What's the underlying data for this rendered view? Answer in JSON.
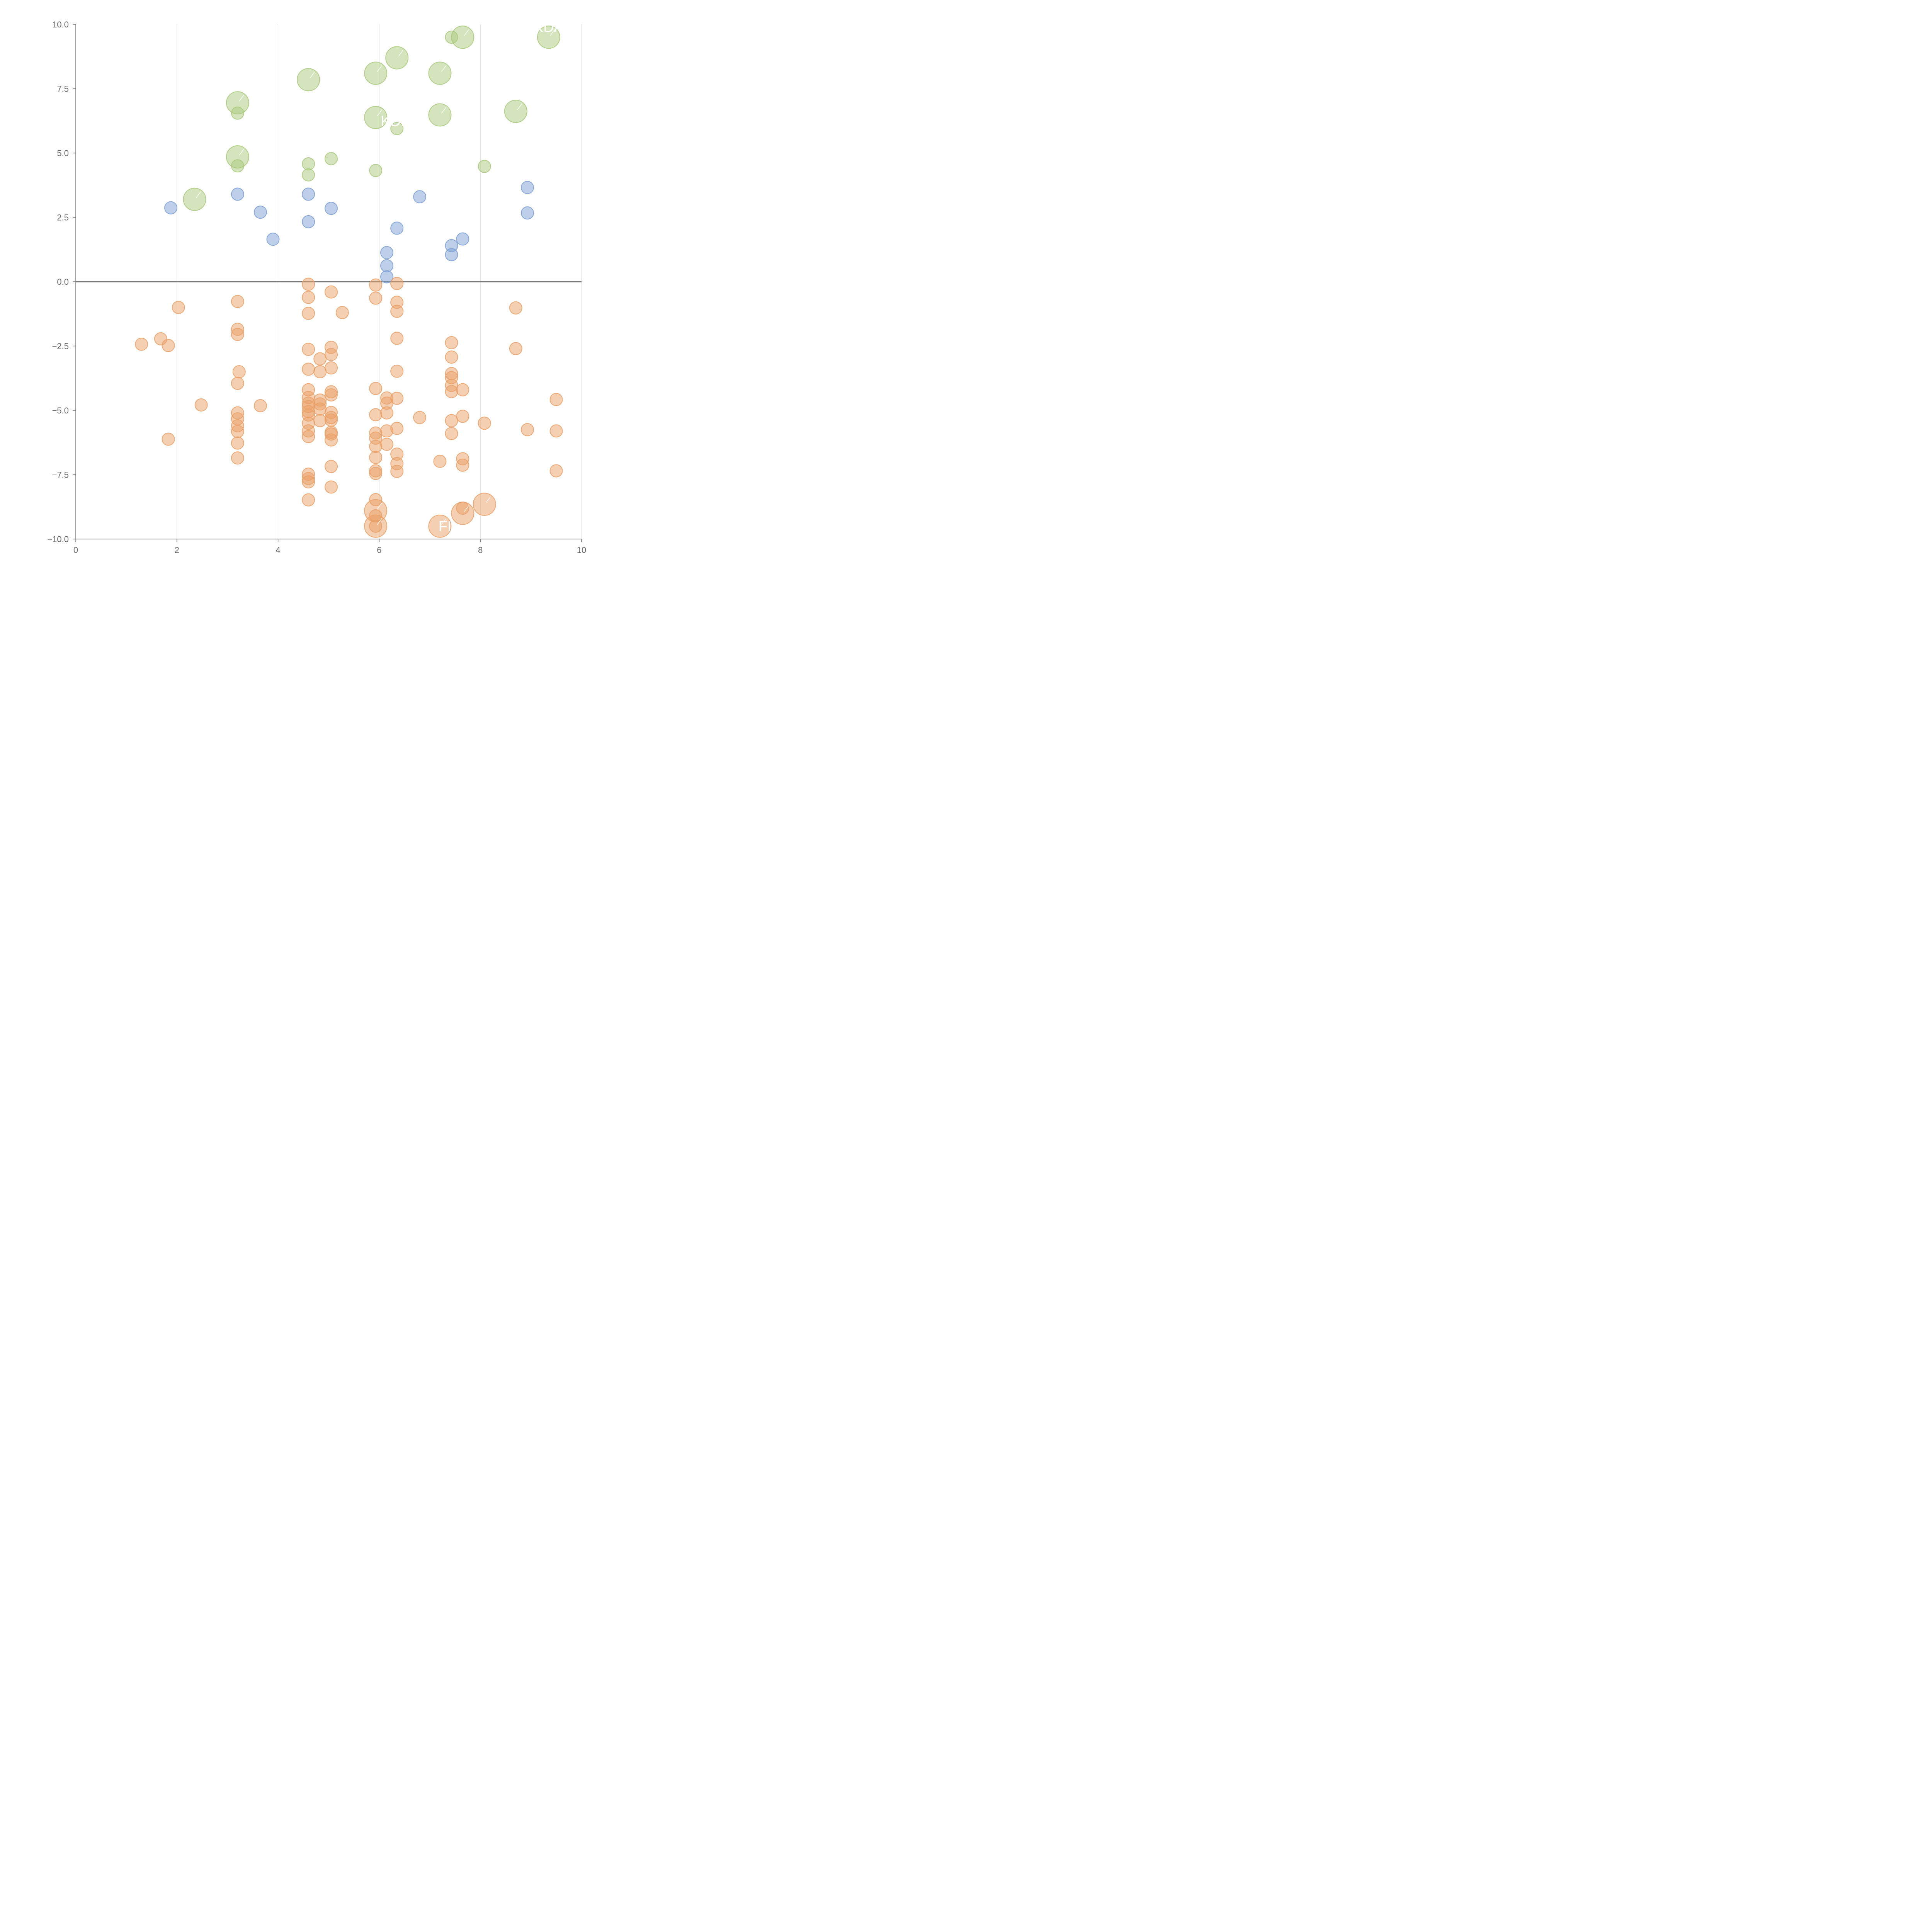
{
  "chart_data": {
    "type": "scatter",
    "title": "",
    "xlabel": "",
    "ylabel": "",
    "xlim": [
      0,
      10
    ],
    "ylim": [
      -10,
      10
    ],
    "x_ticks": [
      0,
      2,
      4,
      6,
      8,
      10
    ],
    "x_tick_labels": [
      "0",
      "2",
      "4",
      "6",
      "8",
      "10"
    ],
    "y_ticks": [
      10,
      7.5,
      5,
      2.5,
      0,
      -2.5,
      -5,
      -7.5,
      -10
    ],
    "y_tick_labels": [
      "10.0",
      "7.5",
      "5.0",
      "2.5",
      "0.0",
      "−2.5",
      "−5.0",
      "−7.5",
      "−10.0"
    ],
    "grid": "vertical",
    "zero_line": true,
    "colors": {
      "green": "#a9c97c",
      "blue": "#7c9fd4",
      "orange": "#e9a066",
      "axis": "#777777",
      "grid": "#dddddd",
      "tick_text": "#666666"
    },
    "series": [
      {
        "color_key": "green",
        "points": [
          [
            2.35,
            3.2,
            "L"
          ],
          [
            3.2,
            6.95,
            "L"
          ],
          [
            3.2,
            6.55,
            "S"
          ],
          [
            3.2,
            4.85,
            "L"
          ],
          [
            3.2,
            4.5,
            "S"
          ],
          [
            4.6,
            7.85,
            "L"
          ],
          [
            4.6,
            4.58,
            "S"
          ],
          [
            4.6,
            4.15,
            "S"
          ],
          [
            5.05,
            4.78,
            "S"
          ],
          [
            5.93,
            8.1,
            "L"
          ],
          [
            5.93,
            6.38,
            "L"
          ],
          [
            5.93,
            4.32,
            "S"
          ],
          [
            6.35,
            8.7,
            "L"
          ],
          [
            6.35,
            5.95,
            "S"
          ],
          [
            7.2,
            8.1,
            "L"
          ],
          [
            7.2,
            6.48,
            "L"
          ],
          [
            7.43,
            9.5,
            "S"
          ],
          [
            7.65,
            9.5,
            "L"
          ],
          [
            8.08,
            4.48,
            "S"
          ],
          [
            8.7,
            6.62,
            "L"
          ],
          [
            9.35,
            9.5,
            "L"
          ]
        ]
      },
      {
        "color_key": "blue",
        "points": [
          [
            1.88,
            2.87,
            "S"
          ],
          [
            3.2,
            3.4,
            "S"
          ],
          [
            3.65,
            2.7,
            "S"
          ],
          [
            3.9,
            1.65,
            "S"
          ],
          [
            4.6,
            3.4,
            "S"
          ],
          [
            4.6,
            2.33,
            "S"
          ],
          [
            5.05,
            2.85,
            "S"
          ],
          [
            6.15,
            1.13,
            "S"
          ],
          [
            6.15,
            0.62,
            "S"
          ],
          [
            6.15,
            0.19,
            "S"
          ],
          [
            6.35,
            2.08,
            "S"
          ],
          [
            6.8,
            3.3,
            "S"
          ],
          [
            7.43,
            1.4,
            "S"
          ],
          [
            7.43,
            1.05,
            "S"
          ],
          [
            7.65,
            1.66,
            "S"
          ],
          [
            8.93,
            3.66,
            "S"
          ],
          [
            8.93,
            2.67,
            "S"
          ]
        ]
      },
      {
        "color_key": "orange",
        "points": [
          [
            1.3,
            -2.43,
            "S"
          ],
          [
            1.68,
            -2.22,
            "S"
          ],
          [
            1.83,
            -2.48,
            "S"
          ],
          [
            1.83,
            -6.12,
            "S"
          ],
          [
            2.03,
            -1.0,
            "S"
          ],
          [
            2.48,
            -4.79,
            "S"
          ],
          [
            3.2,
            -0.77,
            "S"
          ],
          [
            3.2,
            -1.85,
            "S"
          ],
          [
            3.2,
            -2.05,
            "S"
          ],
          [
            3.23,
            -3.5,
            "S"
          ],
          [
            3.2,
            -3.95,
            "S"
          ],
          [
            3.2,
            -5.1,
            "S"
          ],
          [
            3.2,
            -5.33,
            "S"
          ],
          [
            3.2,
            -5.6,
            "S"
          ],
          [
            3.2,
            -5.82,
            "S"
          ],
          [
            3.2,
            -6.27,
            "S"
          ],
          [
            3.2,
            -6.85,
            "S"
          ],
          [
            3.65,
            -4.82,
            "S"
          ],
          [
            4.6,
            -0.1,
            "S"
          ],
          [
            4.6,
            -0.61,
            "S"
          ],
          [
            4.6,
            -1.23,
            "S"
          ],
          [
            4.6,
            -2.63,
            "S"
          ],
          [
            4.6,
            -3.4,
            "S"
          ],
          [
            4.6,
            -4.2,
            "S"
          ],
          [
            4.6,
            -4.5,
            "S"
          ],
          [
            4.6,
            -4.72,
            "S"
          ],
          [
            4.6,
            -4.85,
            "S"
          ],
          [
            4.6,
            -5.05,
            "S"
          ],
          [
            4.6,
            -5.18,
            "S"
          ],
          [
            4.6,
            -5.5,
            "S"
          ],
          [
            4.6,
            -5.8,
            "S"
          ],
          [
            4.6,
            -6.02,
            "S"
          ],
          [
            4.6,
            -7.48,
            "S"
          ],
          [
            4.6,
            -7.65,
            "S"
          ],
          [
            4.6,
            -7.78,
            "S"
          ],
          [
            4.6,
            -8.48,
            "S"
          ],
          [
            4.83,
            -3.0,
            "S"
          ],
          [
            4.83,
            -3.5,
            "S"
          ],
          [
            4.83,
            -4.6,
            "S"
          ],
          [
            4.83,
            -4.75,
            "S"
          ],
          [
            4.83,
            -4.95,
            "S"
          ],
          [
            4.83,
            -5.4,
            "S"
          ],
          [
            5.05,
            -0.4,
            "S"
          ],
          [
            5.05,
            -2.55,
            "S"
          ],
          [
            5.05,
            -2.83,
            "S"
          ],
          [
            5.05,
            -3.35,
            "S"
          ],
          [
            5.05,
            -4.28,
            "S"
          ],
          [
            5.05,
            -4.4,
            "S"
          ],
          [
            5.05,
            -5.08,
            "S"
          ],
          [
            5.05,
            -5.28,
            "S"
          ],
          [
            5.05,
            -5.38,
            "S"
          ],
          [
            5.05,
            -5.85,
            "S"
          ],
          [
            5.05,
            -5.92,
            "S"
          ],
          [
            5.05,
            -6.15,
            "S"
          ],
          [
            5.05,
            -7.18,
            "S"
          ],
          [
            5.05,
            -7.98,
            "S"
          ],
          [
            5.27,
            -1.2,
            "S"
          ],
          [
            5.93,
            -0.13,
            "S"
          ],
          [
            5.93,
            -0.64,
            "S"
          ],
          [
            5.93,
            -4.15,
            "S"
          ],
          [
            5.93,
            -5.17,
            "S"
          ],
          [
            5.93,
            -5.88,
            "S"
          ],
          [
            5.93,
            -6.08,
            "S"
          ],
          [
            5.93,
            -6.4,
            "S"
          ],
          [
            5.93,
            -6.83,
            "S"
          ],
          [
            5.93,
            -7.35,
            "S"
          ],
          [
            5.93,
            -7.45,
            "S"
          ],
          [
            5.93,
            -8.47,
            "S"
          ],
          [
            5.93,
            -8.9,
            "L"
          ],
          [
            5.93,
            -9.1,
            "S"
          ],
          [
            5.93,
            -9.5,
            "L"
          ],
          [
            5.93,
            -9.5,
            "S"
          ],
          [
            6.15,
            -4.52,
            "S"
          ],
          [
            6.15,
            -4.72,
            "S"
          ],
          [
            6.15,
            -5.1,
            "S"
          ],
          [
            6.15,
            -5.8,
            "S"
          ],
          [
            6.15,
            -6.32,
            "S"
          ],
          [
            6.35,
            -0.07,
            "S"
          ],
          [
            6.35,
            -0.8,
            "S"
          ],
          [
            6.35,
            -1.15,
            "S"
          ],
          [
            6.35,
            -2.2,
            "S"
          ],
          [
            6.35,
            -3.48,
            "S"
          ],
          [
            6.35,
            -4.53,
            "S"
          ],
          [
            6.35,
            -5.7,
            "S"
          ],
          [
            6.35,
            -6.7,
            "S"
          ],
          [
            6.35,
            -7.07,
            "S"
          ],
          [
            6.35,
            -7.37,
            "S"
          ],
          [
            6.8,
            -5.28,
            "S"
          ],
          [
            7.2,
            -6.98,
            "S"
          ],
          [
            7.2,
            -9.5,
            "L"
          ],
          [
            7.43,
            -2.37,
            "S"
          ],
          [
            7.43,
            -2.93,
            "S"
          ],
          [
            7.43,
            -3.57,
            "S"
          ],
          [
            7.43,
            -3.73,
            "S"
          ],
          [
            7.43,
            -4.03,
            "S"
          ],
          [
            7.43,
            -4.27,
            "S"
          ],
          [
            7.43,
            -5.4,
            "S"
          ],
          [
            7.43,
            -5.9,
            "S"
          ],
          [
            7.65,
            -4.2,
            "S"
          ],
          [
            7.65,
            -5.23,
            "S"
          ],
          [
            7.65,
            -6.88,
            "S"
          ],
          [
            7.65,
            -7.13,
            "S"
          ],
          [
            7.65,
            -8.8,
            "S"
          ],
          [
            7.65,
            -9.0,
            "L"
          ],
          [
            8.08,
            -5.5,
            "S"
          ],
          [
            8.08,
            -8.65,
            "L"
          ],
          [
            8.7,
            -1.02,
            "S"
          ],
          [
            8.7,
            -2.6,
            "S"
          ],
          [
            8.93,
            -5.75,
            "S"
          ],
          [
            9.5,
            -4.58,
            "S"
          ],
          [
            9.5,
            -5.8,
            "S"
          ],
          [
            9.5,
            -7.35,
            "S"
          ]
        ]
      }
    ],
    "annotations": [
      {
        "text": "KDM",
        "x": 6.35,
        "y": 6.05
      },
      {
        "text": "KDA",
        "x": 9.35,
        "y": 9.7
      },
      {
        "text": "FI",
        "x": 7.3,
        "y": -9.7
      }
    ]
  }
}
